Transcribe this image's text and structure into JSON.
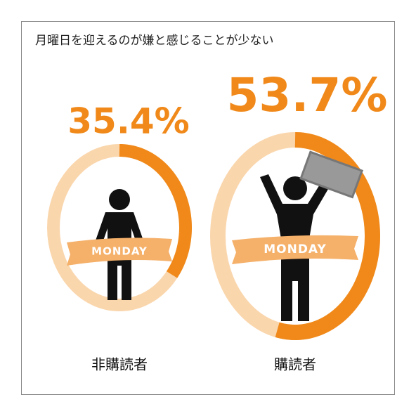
{
  "chart_data": {
    "type": "donut",
    "title": "月曜日を迎えるのが嫌と感じることが少ない",
    "categories": [
      "非購読者",
      "購読者"
    ],
    "values": [
      35.4,
      53.7
    ],
    "value_labels": [
      "35.4%",
      "53.7%"
    ],
    "color": "#f0891a",
    "track_color": "#fad6ad",
    "banner_text": "MONDAY"
  }
}
